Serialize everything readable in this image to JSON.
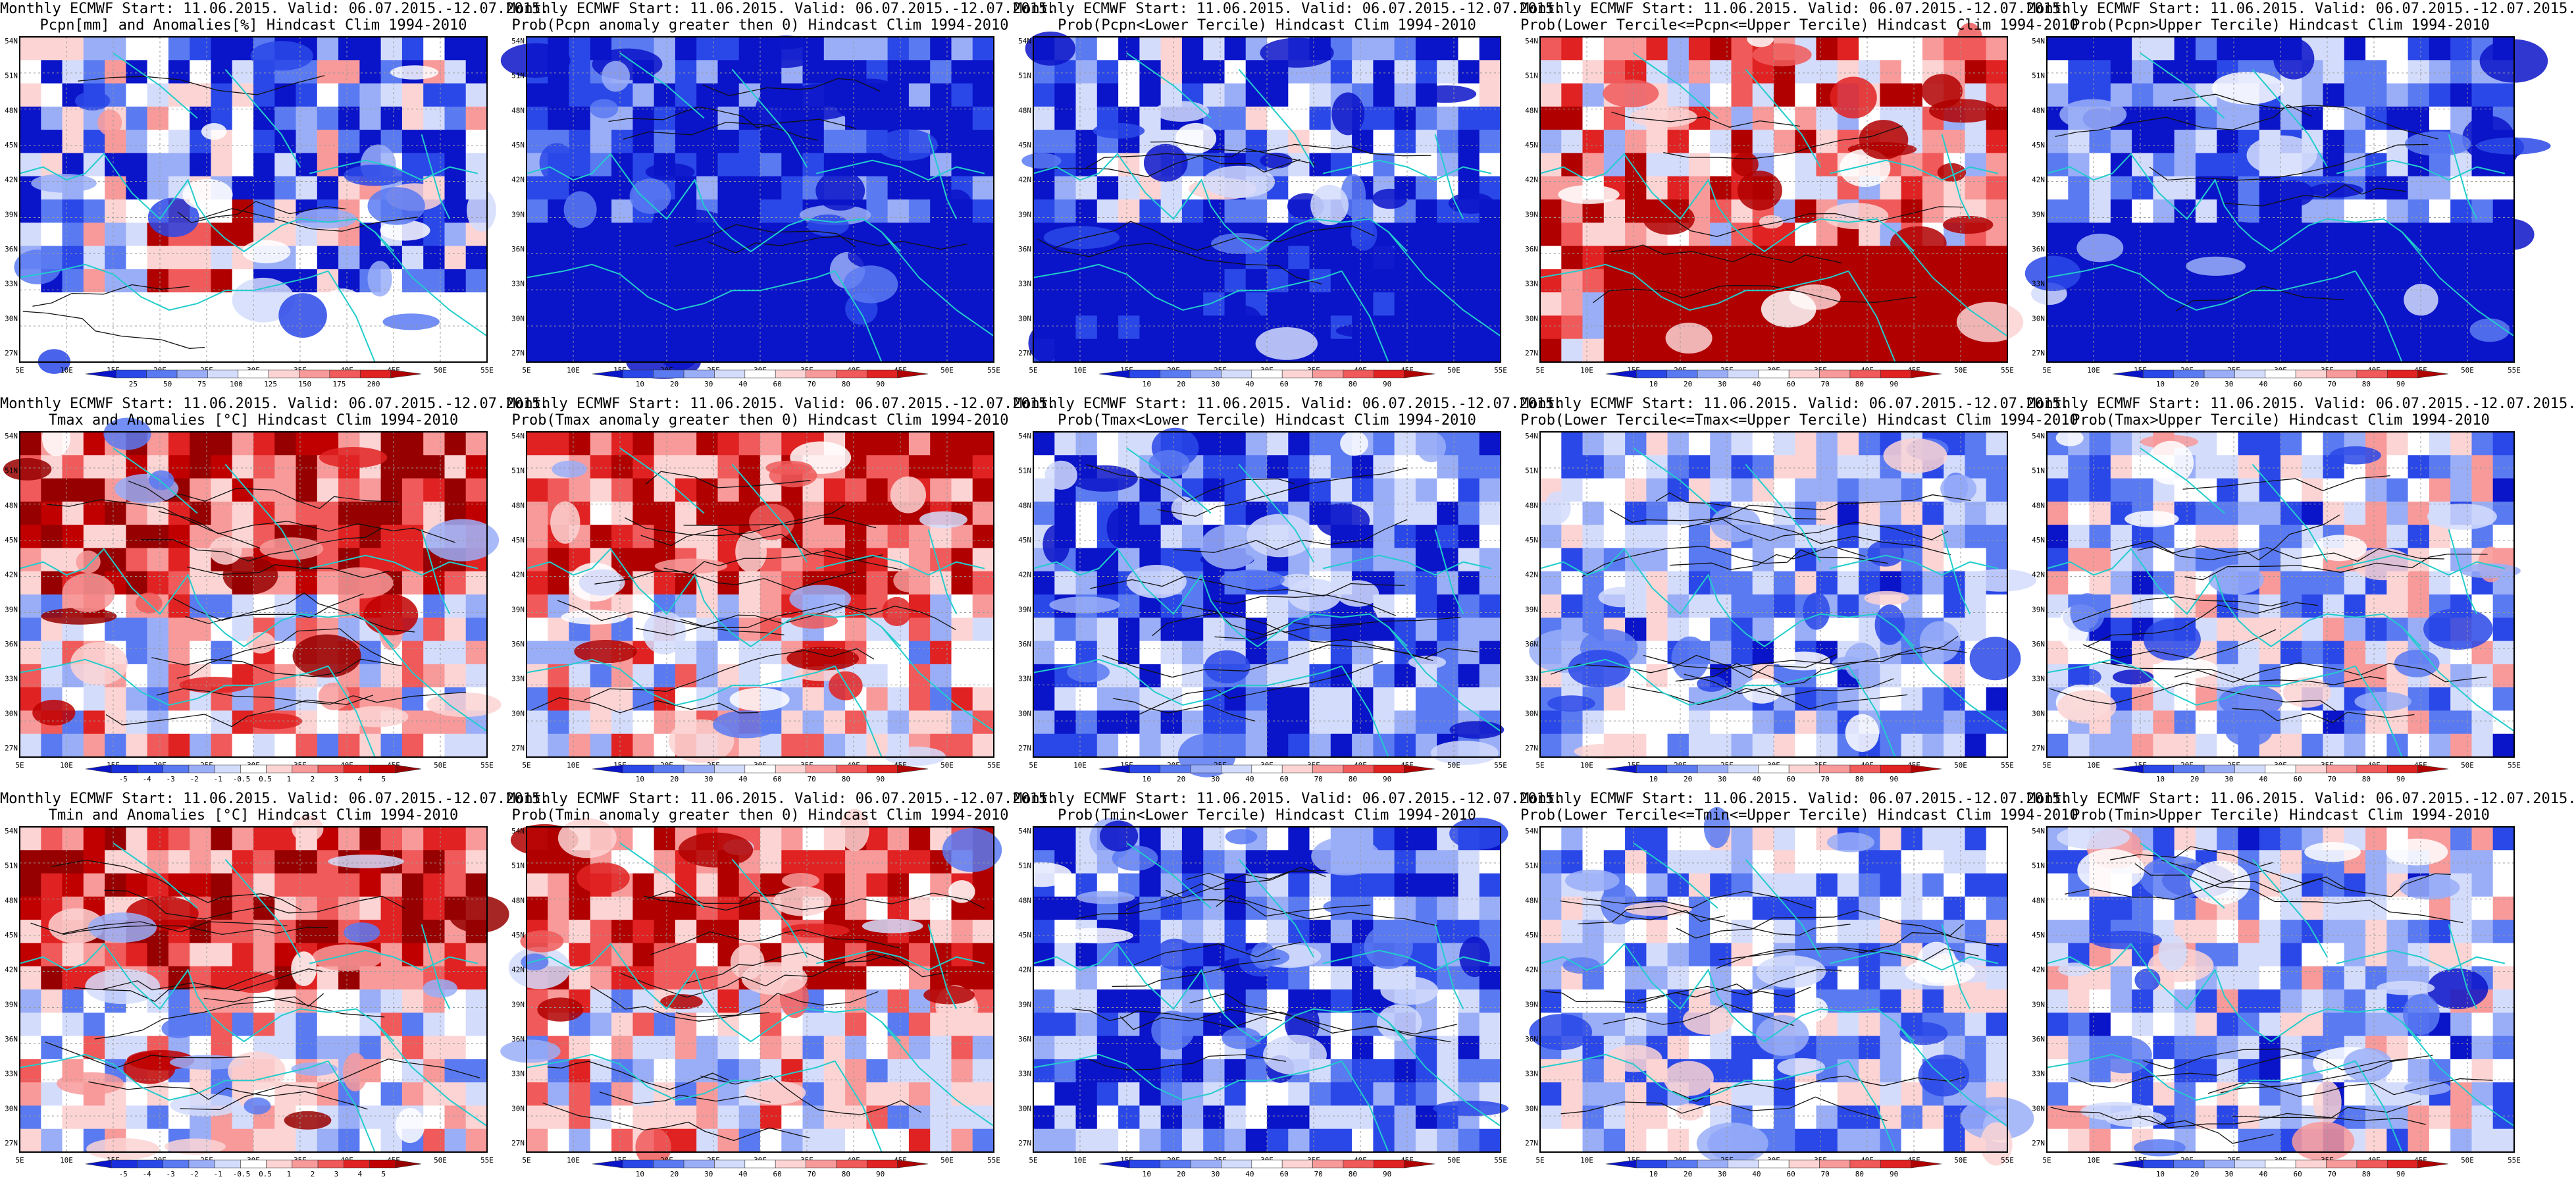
{
  "page": {
    "source_line": "Monthly ECMWF Start: 11.06.2015. Valid: 06.07.2015.-12.07.2015.",
    "rows": [
      {
        "variable": "pcpn",
        "panels": [
          {
            "title1": "Monthly ECMWF Start: 11.06.2015. Valid: 06.07.2015.-12.07.2015.",
            "title2": "Pcpn[mm] and Anomalies[%] Hindcast Clim 1994-2010",
            "colorbar": "pcpn_anom"
          },
          {
            "title1": "Monthly ECMWF Start: 11.06.2015. Valid: 06.07.2015.-12.07.2015.",
            "title2": "Prob(Pcpn anomaly greater then 0) Hindcast Clim 1994-2010",
            "colorbar": "prob"
          },
          {
            "title1": "Monthly ECMWF Start: 11.06.2015. Valid: 06.07.2015.-12.07.2015.",
            "title2": "Prob(Pcpn<Lower Tercile) Hindcast Clim 1994-2010",
            "colorbar": "prob"
          },
          {
            "title1": "Monthly ECMWF Start: 11.06.2015. Valid: 06.07.2015.-12.07.2015.",
            "title2": "Prob(Lower Tercile<=Pcpn<=Upper Tercile) Hindcast Clim 1994-2010",
            "colorbar": "prob"
          },
          {
            "title1": "Monthly ECMWF Start: 11.06.2015. Valid: 06.07.2015.-12.07.2015.",
            "title2": "Prob(Pcpn>Upper Tercile) Hindcast Clim 1994-2010",
            "colorbar": "prob"
          }
        ]
      },
      {
        "variable": "tmax",
        "panels": [
          {
            "title1": "Monthly ECMWF Start: 11.06.2015. Valid: 06.07.2015.-12.07.2015.",
            "title2": "Tmax and Anomalies [°C] Hindcast Clim 1994-2010",
            "colorbar": "temp_anom"
          },
          {
            "title1": "Monthly ECMWF Start: 11.06.2015. Valid: 06.07.2015.-12.07.2015.",
            "title2": "Prob(Tmax anomaly greater then 0) Hindcast Clim 1994-2010",
            "colorbar": "prob"
          },
          {
            "title1": "Monthly ECMWF Start: 11.06.2015. Valid: 06.07.2015.-12.07.2015.",
            "title2": "Prob(Tmax<Lower Tercile) Hindcast Clim 1994-2010",
            "colorbar": "prob"
          },
          {
            "title1": "Monthly ECMWF Start: 11.06.2015. Valid: 06.07.2015.-12.07.2015.",
            "title2": "Prob(Lower Tercile<=Tmax<=Upper Tercile) Hindcast Clim 1994-2010",
            "colorbar": "prob"
          },
          {
            "title1": "Monthly ECMWF Start: 11.06.2015. Valid: 06.07.2015.-12.07.2015.",
            "title2": "Prob(Tmax>Upper Tercile) Hindcast Clim 1994-2010",
            "colorbar": "prob"
          }
        ]
      },
      {
        "variable": "tmin",
        "panels": [
          {
            "title1": "Monthly ECMWF Start: 11.06.2015. Valid: 06.07.2015.-12.07.2015.",
            "title2": "Tmin and Anomalies [°C] Hindcast Clim 1994-2010",
            "colorbar": "temp_anom"
          },
          {
            "title1": "Monthly ECMWF Start: 11.06.2015. Valid: 06.07.2015.-12.07.2015.",
            "title2": "Prob(Tmin anomaly greater then 0) Hindcast Clim 1994-2010",
            "colorbar": "prob"
          },
          {
            "title1": "Monthly ECMWF Start: 11.06.2015. Valid: 06.07.2015.-12.07.2015.",
            "title2": "Prob(Tmin<Lower Tercile) Hindcast Clim 1994-2010",
            "colorbar": "prob"
          },
          {
            "title1": "Monthly ECMWF Start: 11.06.2015. Valid: 06.07.2015.-12.07.2015.",
            "title2": "Prob(Lower Tercile<=Tmin<=Upper Tercile) Hindcast Clim 1994-2010",
            "colorbar": "prob"
          },
          {
            "title1": "Monthly ECMWF Start: 11.06.2015. Valid: 06.07.2015.-12.07.2015.",
            "title2": "Prob(Tmin>Upper Tercile) Hindcast Clim 1994-2010",
            "colorbar": "prob"
          }
        ]
      }
    ]
  },
  "map_axes": {
    "lon_labels": [
      "5E",
      "10E",
      "15E",
      "20E",
      "25E",
      "30E",
      "35E",
      "40E",
      "45E",
      "50E",
      "55E"
    ],
    "lat_labels": [
      "54N",
      "51N",
      "48N",
      "45N",
      "42N",
      "39N",
      "36N",
      "33N",
      "30N",
      "27N"
    ]
  },
  "colorbars": {
    "pcpn_anom": {
      "labels": [
        "25",
        "50",
        "75",
        "100",
        "125",
        "150",
        "175",
        "200"
      ],
      "colors": [
        "#0a14c8",
        "#2a48e8",
        "#5a7af2",
        "#9aaef8",
        "#d4dcfc",
        "#ffffff",
        "#fcd4d4",
        "#f89a9a",
        "#f05a5a",
        "#e02222",
        "#b00000"
      ]
    },
    "prob": {
      "labels": [
        "10",
        "20",
        "30",
        "40",
        "60",
        "70",
        "80",
        "90"
      ],
      "colors": [
        "#0a14c8",
        "#2a48e8",
        "#5a7af2",
        "#9aaef8",
        "#d4dcfc",
        "#ffffff",
        "#fcd4d4",
        "#f89a9a",
        "#f05a5a",
        "#e02222",
        "#b00000"
      ]
    },
    "temp_anom": {
      "labels": [
        "-5",
        "-4",
        "-3",
        "-2",
        "-1",
        "-0.5",
        "0.5",
        "1",
        "2",
        "3",
        "4",
        "5"
      ],
      "colors": [
        "#0a14c8",
        "#1a30dc",
        "#2a48e8",
        "#5a7af2",
        "#9aaef8",
        "#d4dcfc",
        "#ffffff",
        "#fcd4d4",
        "#f89a9a",
        "#f05a5a",
        "#e02222",
        "#c00000",
        "#960000"
      ]
    }
  },
  "style": {
    "coast_color": "#22cccc",
    "contour_color": "#111111",
    "blue_strong": "#0a14c8",
    "red_strong": "#b00000"
  }
}
